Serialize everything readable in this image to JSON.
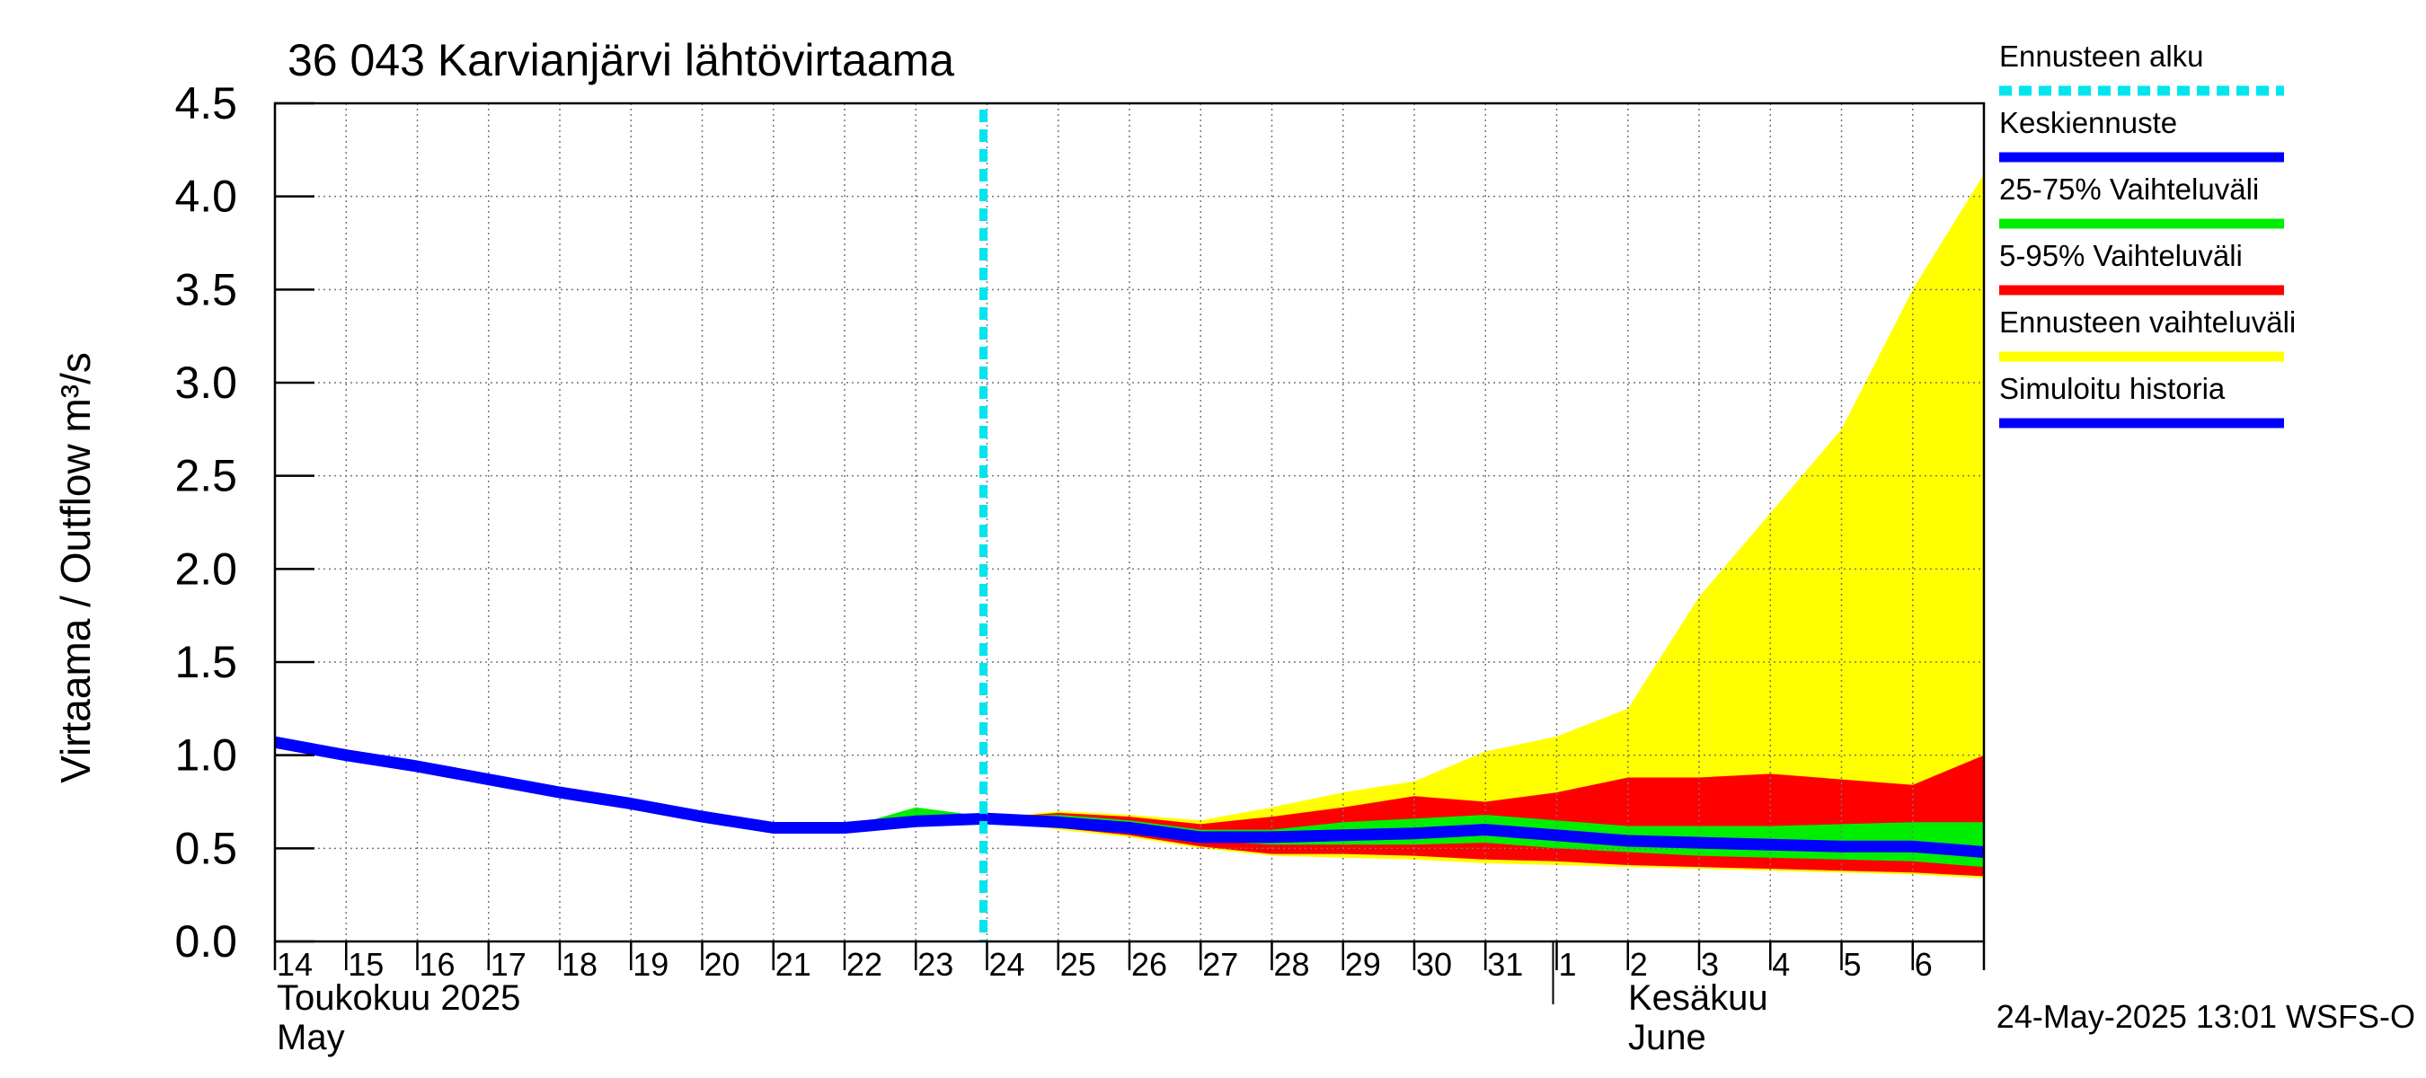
{
  "chart_data": {
    "type": "area",
    "title": "36 043 Karvianjärvi lähtövirtaama",
    "ylabel": "Virtaama / Outflow    m³/s",
    "ylim": [
      0,
      4.5
    ],
    "yticks": [
      "0.0",
      "0.5",
      "1.0",
      "1.5",
      "2.0",
      "2.5",
      "3.0",
      "3.5",
      "4.0",
      "4.5"
    ],
    "x_range_days": [
      0,
      24
    ],
    "x_tick_labels": [
      "14",
      "15",
      "16",
      "17",
      "18",
      "19",
      "20",
      "21",
      "22",
      "23",
      "24",
      "25",
      "26",
      "27",
      "28",
      "29",
      "30",
      "31",
      "1",
      "2",
      "3",
      "4",
      "5",
      "6"
    ],
    "month_labels": {
      "may_fi": "Toukokuu  2025",
      "may_en": "May",
      "june_fi": "Kesäkuu",
      "june_en": "June"
    },
    "june_start_day": 18,
    "forecast_start_day": 10,
    "timestamp": "24-May-2025 13:01 WSFS-O",
    "legend": [
      {
        "label": "Ennusteen alku",
        "color": "#00e5ee",
        "style": "dashed"
      },
      {
        "label": "Keskiennuste",
        "color": "#0000ff",
        "style": "solid"
      },
      {
        "label": "25-75% Vaihteluväli",
        "color": "#00ee00",
        "style": "solid"
      },
      {
        "label": "5-95% Vaihteluväli",
        "color": "#ff0000",
        "style": "solid"
      },
      {
        "label": "Ennusteen vaihteluväli",
        "color": "#ffff00",
        "style": "solid"
      },
      {
        "label": "Simuloitu historia",
        "color": "#0000ff",
        "style": "solid"
      }
    ],
    "series": [
      {
        "name": "Simuloitu historia",
        "x": [
          0,
          1,
          2,
          3,
          4,
          5,
          6,
          7,
          8,
          9,
          10
        ],
        "values": [
          1.07,
          1.0,
          0.94,
          0.87,
          0.8,
          0.74,
          0.67,
          0.61,
          0.61,
          0.645,
          0.66
        ]
      },
      {
        "name": "Keskiennuste",
        "x": [
          10,
          11,
          12,
          13,
          14,
          15,
          16,
          17,
          18,
          19,
          20,
          21,
          22,
          23,
          24
        ],
        "values": [
          0.66,
          0.64,
          0.61,
          0.56,
          0.56,
          0.57,
          0.58,
          0.6,
          0.57,
          0.54,
          0.53,
          0.52,
          0.51,
          0.51,
          0.48
        ]
      },
      {
        "name": "Ennusteen vaihteluväli",
        "x": [
          10,
          11,
          12,
          13,
          14,
          15,
          16,
          17,
          18,
          19,
          20,
          21,
          22,
          23,
          24
        ],
        "upper": [
          0.66,
          0.7,
          0.68,
          0.65,
          0.72,
          0.8,
          0.86,
          1.02,
          1.1,
          1.25,
          1.85,
          2.3,
          2.75,
          3.5,
          4.12
        ],
        "lower": [
          0.66,
          0.6,
          0.56,
          0.5,
          0.46,
          0.45,
          0.44,
          0.42,
          0.41,
          0.4,
          0.39,
          0.38,
          0.37,
          0.36,
          0.34
        ]
      },
      {
        "name": "5-95% Vaihteluväli",
        "x": [
          10,
          11,
          12,
          13,
          14,
          15,
          16,
          17,
          18,
          19,
          20,
          21,
          22,
          23,
          24
        ],
        "upper": [
          0.66,
          0.69,
          0.67,
          0.63,
          0.67,
          0.72,
          0.78,
          0.75,
          0.8,
          0.88,
          0.88,
          0.9,
          0.87,
          0.84,
          1.0
        ],
        "lower": [
          0.66,
          0.61,
          0.57,
          0.51,
          0.47,
          0.47,
          0.46,
          0.44,
          0.43,
          0.41,
          0.4,
          0.39,
          0.38,
          0.37,
          0.35
        ]
      },
      {
        "name": "25-75% Vaihteluväli",
        "x": [
          8,
          9,
          10,
          11,
          12,
          13,
          14,
          15,
          16,
          17,
          18,
          19,
          20,
          21,
          22,
          23,
          24
        ],
        "upper": [
          0.61,
          0.72,
          0.67,
          0.68,
          0.65,
          0.6,
          0.6,
          0.64,
          0.66,
          0.68,
          0.65,
          0.62,
          0.62,
          0.62,
          0.63,
          0.64,
          0.64
        ],
        "lower": [
          0.61,
          0.64,
          0.66,
          0.62,
          0.59,
          0.54,
          0.52,
          0.52,
          0.52,
          0.53,
          0.5,
          0.48,
          0.46,
          0.45,
          0.44,
          0.43,
          0.4
        ]
      }
    ]
  }
}
